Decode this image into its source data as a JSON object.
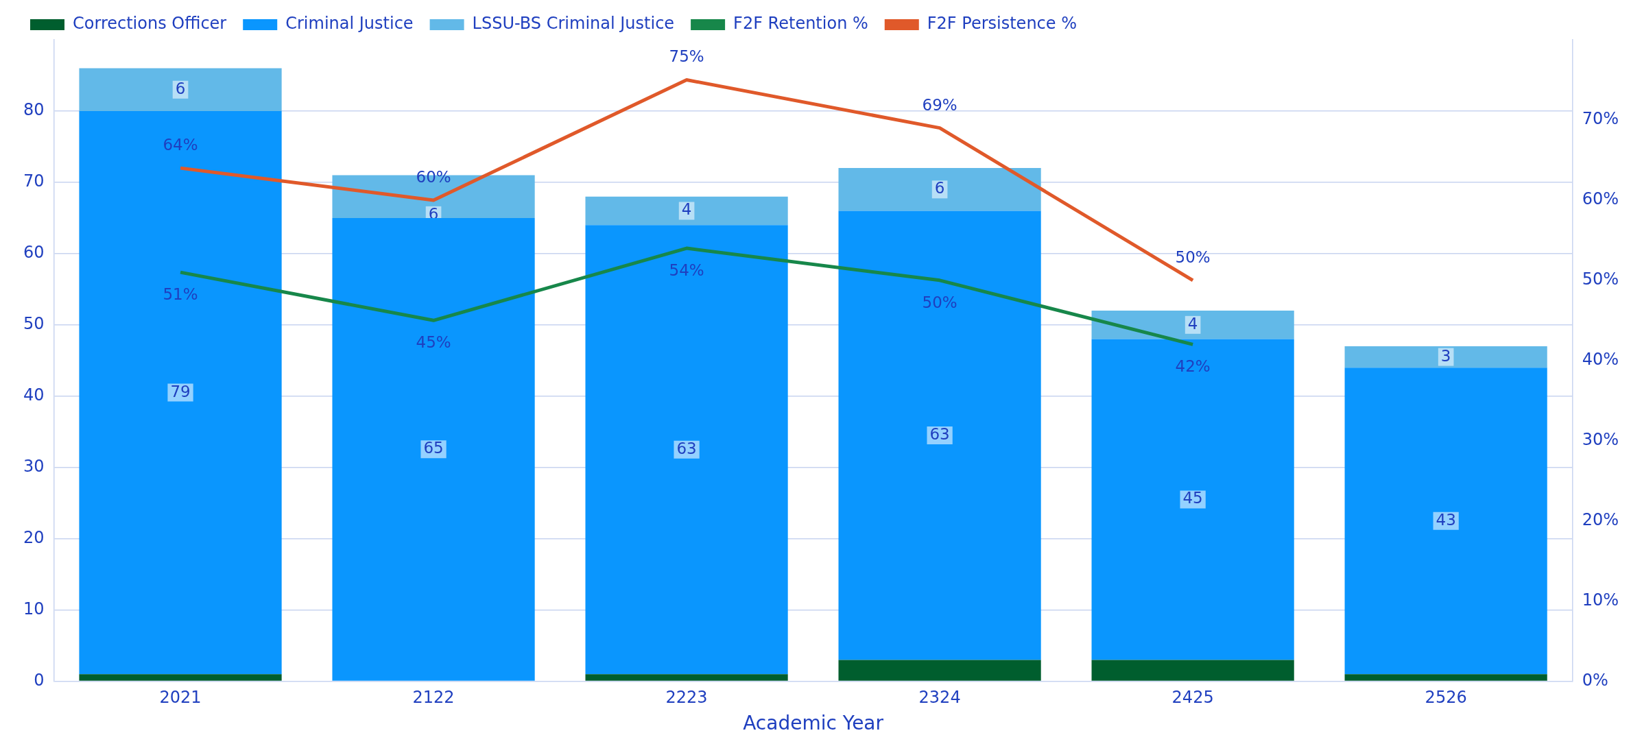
{
  "chart_data": {
    "type": "bar",
    "stacked": true,
    "xlabel": "Academic Year",
    "categories": [
      "2021",
      "2122",
      "2223",
      "2324",
      "2425",
      "2526"
    ],
    "series": [
      {
        "name": "Corrections Officer",
        "color": "#005e2e",
        "values": [
          1,
          0,
          1,
          3,
          3,
          1
        ]
      },
      {
        "name": "Criminal Justice",
        "color": "#0a96fe",
        "values": [
          79,
          65,
          63,
          63,
          45,
          43
        ],
        "value_labels": [
          "79",
          "65",
          "63",
          "63",
          "45",
          "43"
        ]
      },
      {
        "name": "LSSU-BS Criminal Justice",
        "color": "#62b9e8",
        "values": [
          6,
          6,
          4,
          6,
          4,
          3
        ],
        "value_labels": [
          "6",
          "6",
          "4",
          "6",
          "4",
          "3"
        ]
      },
      {
        "name": "F2F Retention %",
        "type": "line",
        "axis": "y2",
        "color": "#17874a",
        "values": [
          51,
          45,
          54,
          50,
          42,
          null
        ],
        "value_labels": [
          "51%",
          "45%",
          "54%",
          "50%",
          "42%",
          null
        ]
      },
      {
        "name": "F2F Persistence %",
        "type": "line",
        "axis": "y2",
        "color": "#e0592a",
        "values": [
          64,
          60,
          75,
          69,
          50,
          null
        ],
        "value_labels": [
          "64%",
          "60%",
          "75%",
          "69%",
          "50%",
          null
        ]
      }
    ],
    "ylim": [
      0,
      90
    ],
    "yticks": [
      0,
      10,
      20,
      30,
      40,
      50,
      60,
      70,
      80
    ],
    "y2lim": [
      0,
      80
    ],
    "y2ticks": [
      {
        "value": 0,
        "label": "0%"
      },
      {
        "value": 10,
        "label": "10%"
      },
      {
        "value": 20,
        "label": "20%"
      },
      {
        "value": 30,
        "label": "30%"
      },
      {
        "value": 40,
        "label": "40%"
      },
      {
        "value": 50,
        "label": "50%"
      },
      {
        "value": 60,
        "label": "60%"
      },
      {
        "value": 70,
        "label": "70%"
      }
    ],
    "grid": "y",
    "legend": "top",
    "marker": "none",
    "line_style": "solid"
  }
}
